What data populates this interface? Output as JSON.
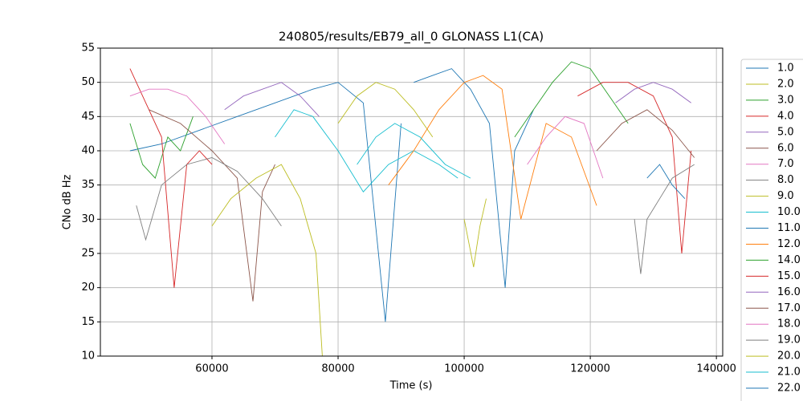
{
  "chart_data": {
    "type": "line",
    "title": "240805/results/EB79_all_0 GLONASS L1(CA)",
    "x_label": "Time (s)",
    "y_label": "CNo dB Hz",
    "xlim": [
      42300,
      141000
    ],
    "ylim": [
      10,
      55
    ],
    "xticks": [
      60000,
      80000,
      100000,
      120000,
      140000
    ],
    "yticks": [
      10,
      15,
      20,
      25,
      30,
      35,
      40,
      45,
      50,
      55
    ],
    "grid": true,
    "legend": "outside-right",
    "series": [
      {
        "name": "1.0",
        "color": "#1f77b4",
        "x": [
          47000,
          52000,
          58000,
          64000,
          70000,
          76000,
          80000,
          84000,
          87500,
          90000
        ],
        "values": [
          40,
          41,
          43,
          45,
          47,
          49,
          50,
          47,
          15,
          44
        ]
      },
      {
        "name": "2.0",
        "color": "#bcbd22",
        "x": [
          80000,
          83000,
          86000,
          89000,
          92000,
          95000
        ],
        "values": [
          44,
          48,
          50,
          49,
          46,
          42
        ]
      },
      {
        "name": "3.0",
        "color": "#2ca02c",
        "x": [
          47000,
          49000,
          51000,
          53000,
          55000,
          57000
        ],
        "values": [
          44,
          38,
          36,
          42,
          40,
          45
        ]
      },
      {
        "name": "4.0",
        "color": "#d62728",
        "x": [
          47000,
          49000,
          52000,
          54000,
          56000,
          58000,
          60000
        ],
        "values": [
          52,
          48,
          42,
          20,
          38,
          40,
          38
        ]
      },
      {
        "name": "5.0",
        "color": "#9467bd",
        "x": [
          62000,
          65000,
          68000,
          71000,
          74000,
          77000
        ],
        "values": [
          46,
          48,
          49,
          50,
          48,
          45
        ]
      },
      {
        "name": "6.0",
        "color": "#8c564b",
        "x": [
          50000,
          55000,
          60000,
          64000,
          66500,
          68000,
          70000
        ],
        "values": [
          46,
          44,
          40,
          36,
          18,
          34,
          38
        ]
      },
      {
        "name": "7.0",
        "color": "#e377c2",
        "x": [
          47000,
          50000,
          53000,
          56000,
          59000,
          62000
        ],
        "values": [
          48,
          49,
          49,
          48,
          45,
          41
        ]
      },
      {
        "name": "8.0",
        "color": "#7f7f7f",
        "x": [
          48000,
          49500,
          52000,
          56000,
          60000,
          64000,
          68000,
          71000
        ],
        "values": [
          32,
          27,
          35,
          38,
          39,
          37,
          33,
          29
        ]
      },
      {
        "name": "9.0",
        "color": "#bcbd22",
        "x": [
          60000,
          63000,
          67000,
          71000,
          74000,
          76500,
          77500
        ],
        "values": [
          29,
          33,
          36,
          38,
          33,
          25,
          10
        ]
      },
      {
        "name": "10.0",
        "color": "#17becf",
        "x": [
          70000,
          73000,
          76000,
          80000,
          84000,
          88000,
          92000,
          96000,
          99000
        ],
        "values": [
          42,
          46,
          45,
          40,
          34,
          38,
          40,
          38,
          36
        ]
      },
      {
        "name": "11.0",
        "color": "#1f77b4",
        "x": [
          92000,
          95000,
          98000,
          101000,
          104000,
          106500,
          108000,
          111000
        ],
        "values": [
          50,
          51,
          52,
          49,
          44,
          20,
          40,
          46
        ]
      },
      {
        "name": "12.0",
        "color": "#ff7f0e",
        "x": [
          88000,
          92000,
          96000,
          100000,
          103000,
          106000,
          109000,
          113000,
          117000,
          121000
        ],
        "values": [
          35,
          40,
          46,
          50,
          51,
          49,
          30,
          44,
          42,
          32
        ]
      },
      {
        "name": "14.0",
        "color": "#2ca02c",
        "x": [
          108000,
          111000,
          114000,
          117000,
          120000,
          123000,
          126000
        ],
        "values": [
          42,
          46,
          50,
          53,
          52,
          48,
          44
        ]
      },
      {
        "name": "15.0",
        "color": "#d62728",
        "x": [
          118000,
          122000,
          126000,
          130000,
          133000,
          134500,
          136000
        ],
        "values": [
          48,
          50,
          50,
          48,
          42,
          25,
          40
        ]
      },
      {
        "name": "16.0",
        "color": "#9467bd",
        "x": [
          124000,
          127000,
          130000,
          133000,
          136000
        ],
        "values": [
          47,
          49,
          50,
          49,
          47
        ]
      },
      {
        "name": "17.0",
        "color": "#8c564b",
        "x": [
          121000,
          125000,
          129000,
          133000,
          136500
        ],
        "values": [
          40,
          44,
          46,
          43,
          39
        ]
      },
      {
        "name": "18.0",
        "color": "#e377c2",
        "x": [
          110000,
          113000,
          116000,
          119000,
          122000
        ],
        "values": [
          38,
          42,
          45,
          44,
          36
        ]
      },
      {
        "name": "19.0",
        "color": "#7f7f7f",
        "x": [
          127000,
          128000,
          129000,
          131000,
          133000,
          136500
        ],
        "values": [
          30,
          22,
          30,
          33,
          36,
          38
        ]
      },
      {
        "name": "20.0",
        "color": "#bcbd22",
        "x": [
          100000,
          101500,
          102500,
          103500
        ],
        "values": [
          30,
          23,
          29,
          33
        ]
      },
      {
        "name": "21.0",
        "color": "#17becf",
        "x": [
          83000,
          86000,
          89000,
          93000,
          97000,
          101000
        ],
        "values": [
          38,
          42,
          44,
          42,
          38,
          36
        ]
      },
      {
        "name": "22.0",
        "color": "#1f77b4",
        "x": [
          129000,
          131000,
          133000,
          135000
        ],
        "values": [
          36,
          38,
          35,
          33
        ]
      }
    ]
  }
}
